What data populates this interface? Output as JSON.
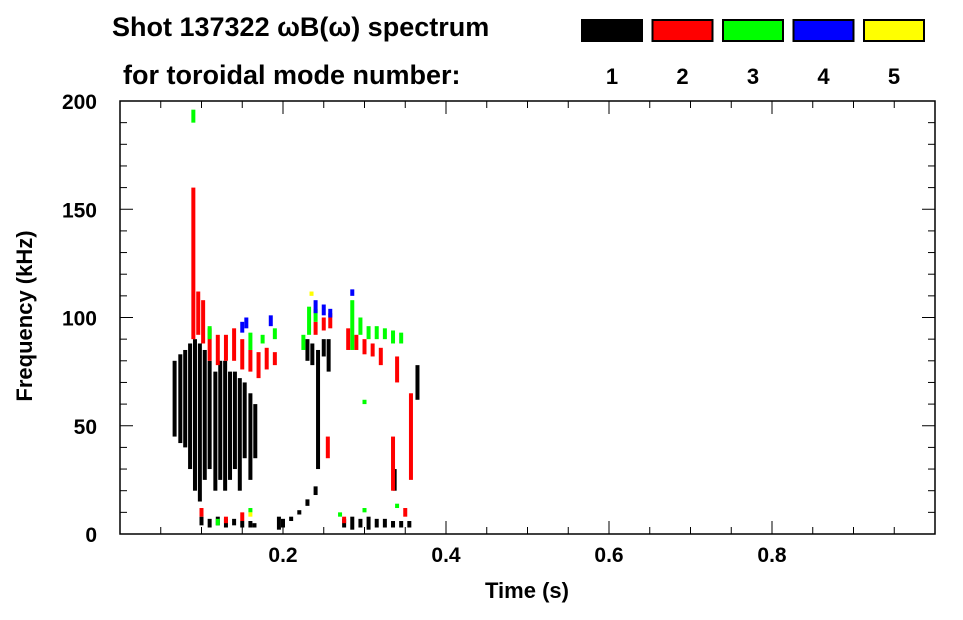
{
  "chart_data": {
    "type": "heatmap",
    "title_line1": "Shot 137322 ωB(ω) spectrum",
    "title_line2": "for toroidal mode number:",
    "xlabel": "Time (s)",
    "ylabel": "Frequency (kHz)",
    "xlim": [
      0,
      1.0
    ],
    "ylim": [
      0,
      200
    ],
    "xticks": [
      {
        "v": 0.2,
        "label": "0.2"
      },
      {
        "v": 0.4,
        "label": "0.4"
      },
      {
        "v": 0.6,
        "label": "0.6"
      },
      {
        "v": 0.8,
        "label": "0.8"
      }
    ],
    "yticks": [
      {
        "v": 0,
        "label": "0"
      },
      {
        "v": 50,
        "label": "50"
      },
      {
        "v": 100,
        "label": "100"
      },
      {
        "v": 150,
        "label": "150"
      },
      {
        "v": 200,
        "label": "200"
      }
    ],
    "x_minor_step": 0.05,
    "y_minor_step": 10,
    "legend": [
      {
        "label": "1",
        "color": "#000000"
      },
      {
        "label": "2",
        "color": "#ff0000"
      },
      {
        "label": "3",
        "color": "#00ff00"
      },
      {
        "label": "4",
        "color": "#0000ff"
      },
      {
        "label": "5",
        "color": "#ffff00"
      }
    ],
    "series_note": "segments are [time_s, f_min_kHz, f_max_kHz]",
    "series": [
      {
        "mode": "1",
        "color": "#000000",
        "segments": [
          [
            0.067,
            45,
            80
          ],
          [
            0.074,
            42,
            83
          ],
          [
            0.08,
            40,
            85
          ],
          [
            0.086,
            30,
            88
          ],
          [
            0.092,
            20,
            90
          ],
          [
            0.098,
            15,
            88
          ],
          [
            0.104,
            25,
            85
          ],
          [
            0.11,
            30,
            80
          ],
          [
            0.117,
            20,
            75
          ],
          [
            0.123,
            25,
            80
          ],
          [
            0.129,
            20,
            80
          ],
          [
            0.135,
            25,
            75
          ],
          [
            0.141,
            30,
            75
          ],
          [
            0.147,
            20,
            72
          ],
          [
            0.153,
            35,
            70
          ],
          [
            0.16,
            25,
            65
          ],
          [
            0.166,
            35,
            60
          ],
          [
            0.1,
            4,
            8
          ],
          [
            0.11,
            3,
            7
          ],
          [
            0.12,
            4,
            8
          ],
          [
            0.13,
            3,
            7
          ],
          [
            0.14,
            4,
            7
          ],
          [
            0.15,
            3,
            6
          ],
          [
            0.16,
            3,
            6
          ],
          [
            0.165,
            3,
            5
          ],
          [
            0.195,
            2,
            8
          ],
          [
            0.2,
            3,
            7
          ],
          [
            0.21,
            6,
            8
          ],
          [
            0.22,
            9,
            11
          ],
          [
            0.23,
            13,
            16
          ],
          [
            0.24,
            18,
            22
          ],
          [
            0.23,
            80,
            90
          ],
          [
            0.236,
            78,
            88
          ],
          [
            0.243,
            30,
            85
          ],
          [
            0.25,
            82,
            90
          ],
          [
            0.256,
            75,
            90
          ],
          [
            0.275,
            3,
            7
          ],
          [
            0.285,
            2,
            8
          ],
          [
            0.295,
            3,
            7
          ],
          [
            0.305,
            2,
            8
          ],
          [
            0.315,
            3,
            7
          ],
          [
            0.325,
            3,
            7
          ],
          [
            0.335,
            3,
            6
          ],
          [
            0.345,
            3,
            6
          ],
          [
            0.355,
            3,
            6
          ],
          [
            0.337,
            20,
            30
          ],
          [
            0.365,
            62,
            78
          ]
        ]
      },
      {
        "mode": "2",
        "color": "#ff0000",
        "segments": [
          [
            0.09,
            90,
            160
          ],
          [
            0.096,
            92,
            112
          ],
          [
            0.102,
            88,
            108
          ],
          [
            0.11,
            80,
            95
          ],
          [
            0.12,
            78,
            92
          ],
          [
            0.13,
            80,
            92
          ],
          [
            0.14,
            80,
            95
          ],
          [
            0.15,
            76,
            90
          ],
          [
            0.16,
            75,
            85
          ],
          [
            0.17,
            72,
            84
          ],
          [
            0.18,
            76,
            86
          ],
          [
            0.19,
            78,
            84
          ],
          [
            0.24,
            92,
            98
          ],
          [
            0.25,
            94,
            100
          ],
          [
            0.258,
            95,
            102
          ],
          [
            0.28,
            85,
            95
          ],
          [
            0.29,
            85,
            92
          ],
          [
            0.3,
            83,
            90
          ],
          [
            0.31,
            82,
            88
          ],
          [
            0.32,
            78,
            86
          ],
          [
            0.335,
            20,
            45
          ],
          [
            0.34,
            70,
            82
          ],
          [
            0.357,
            25,
            65
          ],
          [
            0.255,
            35,
            45
          ],
          [
            0.1,
            8,
            12
          ],
          [
            0.13,
            5,
            8
          ],
          [
            0.15,
            6,
            10
          ],
          [
            0.275,
            5,
            8
          ],
          [
            0.35,
            8,
            12
          ]
        ]
      },
      {
        "mode": "3",
        "color": "#00ff00",
        "segments": [
          [
            0.09,
            190,
            196
          ],
          [
            0.11,
            90,
            96
          ],
          [
            0.16,
            85,
            93
          ],
          [
            0.175,
            88,
            92
          ],
          [
            0.19,
            90,
            95
          ],
          [
            0.225,
            85,
            92
          ],
          [
            0.232,
            92,
            105
          ],
          [
            0.24,
            98,
            104
          ],
          [
            0.285,
            85,
            108
          ],
          [
            0.295,
            92,
            100
          ],
          [
            0.305,
            90,
            96
          ],
          [
            0.315,
            90,
            96
          ],
          [
            0.325,
            90,
            95
          ],
          [
            0.335,
            88,
            94
          ],
          [
            0.345,
            88,
            93
          ],
          [
            0.3,
            60,
            62
          ],
          [
            0.12,
            4,
            7
          ],
          [
            0.16,
            10,
            12
          ],
          [
            0.3,
            10,
            12
          ],
          [
            0.34,
            12,
            14
          ],
          [
            0.27,
            8,
            10
          ]
        ]
      },
      {
        "mode": "4",
        "color": "#0000ff",
        "segments": [
          [
            0.15,
            93,
            98
          ],
          [
            0.155,
            95,
            100
          ],
          [
            0.185,
            96,
            101
          ],
          [
            0.24,
            102,
            108
          ],
          [
            0.25,
            101,
            106
          ],
          [
            0.258,
            100,
            104
          ],
          [
            0.285,
            110,
            113
          ]
        ]
      },
      {
        "mode": "5",
        "color": "#ffff00",
        "segments": [
          [
            0.235,
            110,
            112
          ],
          [
            0.16,
            8,
            10
          ]
        ]
      }
    ]
  }
}
